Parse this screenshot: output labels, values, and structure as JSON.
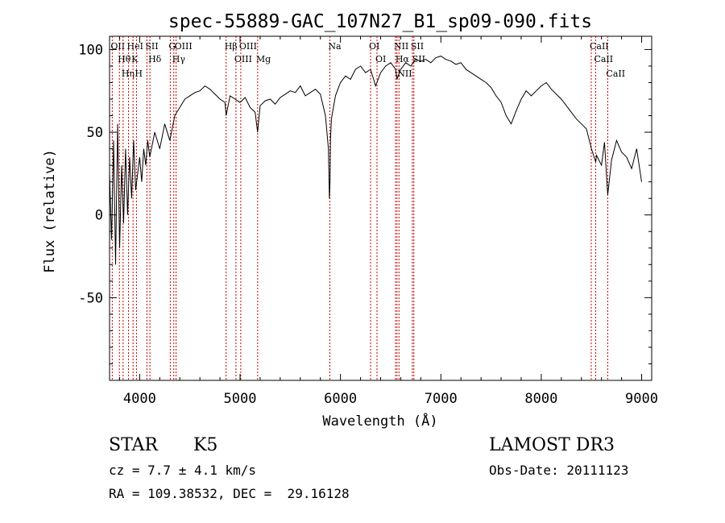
{
  "chart_data": {
    "type": "line",
    "title": "spec-55889-GAC_107N27_B1_sp09-090.fits",
    "xlabel": "Wavelength (Å)",
    "ylabel": "Flux (relative)",
    "xlim": [
      3700,
      9100
    ],
    "ylim": [
      -100,
      108
    ],
    "x_ticks": [
      4000,
      5000,
      6000,
      7000,
      8000,
      9000
    ],
    "y_ticks": [
      -50,
      0,
      50,
      100
    ],
    "grid": false,
    "series": [
      {
        "name": "flux",
        "x": [
          3700,
          3720,
          3740,
          3760,
          3780,
          3800,
          3820,
          3840,
          3860,
          3880,
          3900,
          3920,
          3940,
          3960,
          3980,
          4000,
          4020,
          4040,
          4060,
          4080,
          4100,
          4150,
          4200,
          4250,
          4300,
          4350,
          4400,
          4450,
          4500,
          4550,
          4600,
          4650,
          4700,
          4750,
          4800,
          4850,
          4861,
          4900,
          4950,
          5000,
          5050,
          5100,
          5150,
          5175,
          5200,
          5250,
          5300,
          5350,
          5400,
          5450,
          5500,
          5550,
          5600,
          5650,
          5700,
          5750,
          5800,
          5850,
          5880,
          5890,
          5893,
          5896,
          5900,
          5910,
          5950,
          6000,
          6050,
          6100,
          6150,
          6200,
          6250,
          6300,
          6350,
          6400,
          6450,
          6500,
          6550,
          6563,
          6600,
          6650,
          6700,
          6750,
          6800,
          6850,
          6900,
          6950,
          7000,
          7050,
          7100,
          7150,
          7200,
          7250,
          7300,
          7350,
          7400,
          7450,
          7500,
          7550,
          7600,
          7650,
          7700,
          7750,
          7800,
          7850,
          7900,
          7950,
          8000,
          8050,
          8100,
          8150,
          8200,
          8250,
          8300,
          8350,
          8400,
          8450,
          8500,
          8542,
          8550,
          8600,
          8630,
          8662,
          8700,
          8750,
          8800,
          8850,
          8900,
          8950,
          9000
        ],
        "y": [
          25,
          -15,
          45,
          -30,
          55,
          -20,
          30,
          -5,
          40,
          0,
          35,
          10,
          45,
          15,
          25,
          35,
          20,
          40,
          30,
          45,
          35,
          50,
          40,
          55,
          45,
          60,
          65,
          70,
          72,
          74,
          75,
          78,
          76,
          73,
          70,
          68,
          60,
          72,
          70,
          68,
          71,
          65,
          62,
          50,
          66,
          69,
          70,
          67,
          71,
          73,
          75,
          74,
          78,
          72,
          74,
          76,
          73,
          60,
          40,
          10,
          15,
          20,
          45,
          58,
          72,
          80,
          84,
          82,
          88,
          90,
          86,
          88,
          78,
          86,
          90,
          92,
          88,
          82,
          88,
          92,
          90,
          94,
          93,
          94,
          92,
          95,
          96,
          94,
          93,
          91,
          92,
          88,
          86,
          84,
          82,
          80,
          77,
          72,
          68,
          60,
          55,
          63,
          70,
          75,
          72,
          75,
          78,
          80,
          76,
          73,
          70,
          66,
          62,
          58,
          55,
          52,
          40,
          32,
          36,
          30,
          44,
          12,
          33,
          45,
          38,
          35,
          28,
          40,
          20
        ]
      }
    ],
    "lines": [
      {
        "name": "OII",
        "wavelength": 3727
      },
      {
        "name": "Hθ",
        "wavelength": 3798
      },
      {
        "name": "Hη",
        "wavelength": 3835
      },
      {
        "name": "HeI",
        "wavelength": 3889
      },
      {
        "name": "K",
        "wavelength": 3934
      },
      {
        "name": "H",
        "wavelength": 3968
      },
      {
        "name": "SII",
        "wavelength": 4072
      },
      {
        "name": "Hδ",
        "wavelength": 4102
      },
      {
        "name": "G",
        "wavelength": 4305
      },
      {
        "name": "Hγ",
        "wavelength": 4340
      },
      {
        "name": "OIII",
        "wavelength": 4363
      },
      {
        "name": "Hβ",
        "wavelength": 4861
      },
      {
        "name": "OIII",
        "wavelength": 4959
      },
      {
        "name": "OIII",
        "wavelength": 5007
      },
      {
        "name": "Mg",
        "wavelength": 5175
      },
      {
        "name": "Na",
        "wavelength": 5894
      },
      {
        "name": "OI",
        "wavelength": 6300
      },
      {
        "name": "OI",
        "wavelength": 6364
      },
      {
        "name": "NII",
        "wavelength": 6548
      },
      {
        "name": "Hα",
        "wavelength": 6563
      },
      {
        "name": "NII",
        "wavelength": 6583
      },
      {
        "name": "SII",
        "wavelength": 6716
      },
      {
        "name": "SII",
        "wavelength": 6731
      },
      {
        "name": "CaII",
        "wavelength": 8498
      },
      {
        "name": "CaII",
        "wavelength": 8542
      },
      {
        "name": "CaII",
        "wavelength": 8662
      }
    ]
  },
  "info": {
    "object_class": "STAR",
    "subclass": "K5",
    "survey": "LAMOST DR3",
    "redshift_text": "cz = 7.7 ± 4.1 km/s",
    "obs_date_text": "Obs-Date: 20111123",
    "coords_text": "RA = 109.38532, DEC =  29.16128"
  }
}
